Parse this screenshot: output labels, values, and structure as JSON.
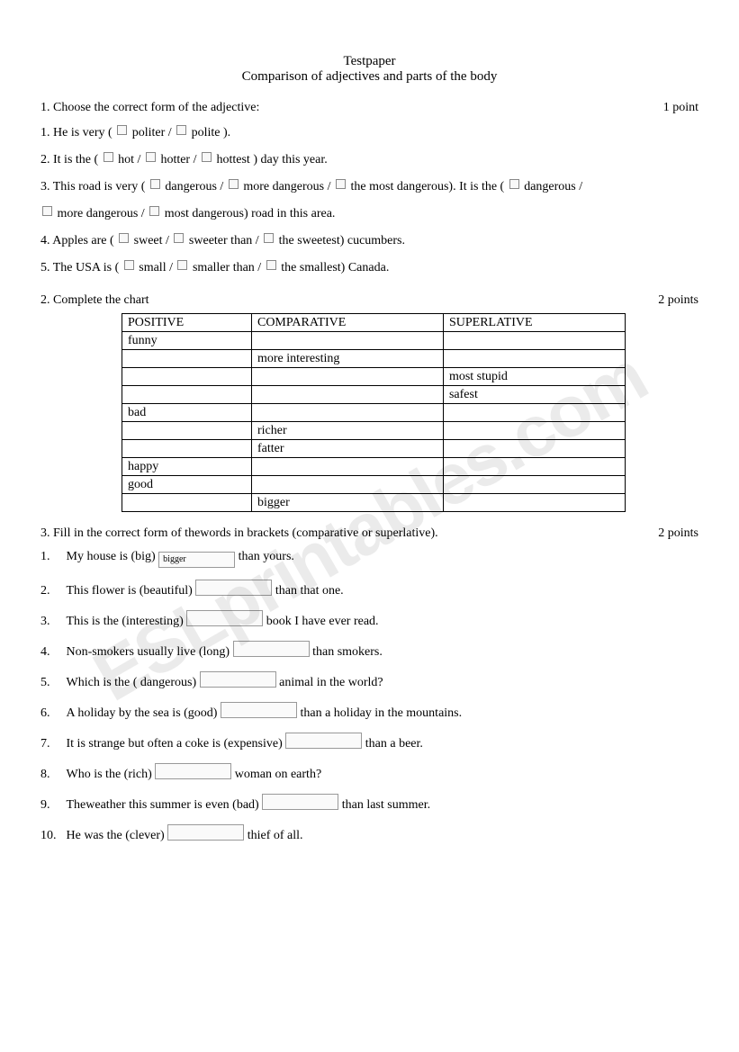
{
  "title": {
    "line1": "Testpaper",
    "line2": "Comparison of adjectives  and parts of the body"
  },
  "watermark": "ESLprintables.com",
  "section1": {
    "header": "1. Choose the correct form of the adjective:",
    "points": "1 point",
    "items": [
      {
        "pre": "1. He is very (",
        "opts": [
          "politer /",
          "polite )."
        ]
      },
      {
        "pre": "2. It is the (",
        "opts": [
          "hot /",
          "hotter /",
          "hottest ) day this year."
        ]
      },
      {
        "pre": "3. This road is very (",
        "opts": [
          "dangerous /",
          "more dangerous /",
          "the most dangerous). It is the ("
        ],
        "opts2_pre": "",
        "opts2": [
          "dangerous /"
        ],
        "cont_pre": "",
        "cont_opts": [
          "more dangerous /",
          "most dangerous) road in this area."
        ]
      },
      {
        "pre": "4. Apples are (",
        "opts": [
          "sweet /",
          "sweeter than /",
          "the sweetest) cucumbers."
        ]
      },
      {
        "pre": "5. The USA is (",
        "opts": [
          "small /",
          "smaller than /",
          "the smallest) Canada."
        ]
      }
    ]
  },
  "section2": {
    "header": "2. Complete the chart",
    "points": "2 points",
    "columns": [
      "POSITIVE",
      "COMPARATIVE",
      "SUPERLATIVE"
    ],
    "rows": [
      [
        "funny",
        "",
        ""
      ],
      [
        "",
        "more interesting",
        ""
      ],
      [
        "",
        "",
        "most stupid"
      ],
      [
        "",
        "",
        "safest"
      ],
      [
        "bad",
        "",
        ""
      ],
      [
        "",
        "richer",
        ""
      ],
      [
        "",
        "fatter",
        ""
      ],
      [
        "happy",
        "",
        ""
      ],
      [
        "good",
        "",
        ""
      ],
      [
        "",
        "bigger",
        ""
      ]
    ]
  },
  "section3": {
    "header": "3. Fill in the correct form of thewords in brackets (comparative or superlative).",
    "points": "2 points",
    "items": [
      {
        "n": "1.",
        "pre": "My house is (big)",
        "val": "bigger",
        "post": "than yours."
      },
      {
        "n": "2.",
        "pre": "This flower is (beautiful)",
        "val": "",
        "post": "than that one."
      },
      {
        "n": "3.",
        "pre": "This is the (interesting)",
        "val": "",
        "post": "book I have ever read."
      },
      {
        "n": "4.",
        "pre": "Non-smokers usually live (long)",
        "val": "",
        "post": "than smokers."
      },
      {
        "n": "5.",
        "pre": "Which is the ( dangerous)",
        "val": "",
        "post": "animal in the world?"
      },
      {
        "n": "6.",
        "pre": "A holiday by the sea is (good)",
        "val": "",
        "post": "than a holiday in the mountains."
      },
      {
        "n": "7.",
        "pre": "It is strange but often a coke is (expensive)",
        "val": "",
        "post": "than a beer."
      },
      {
        "n": "8.",
        "pre": "Who is the (rich)",
        "val": "",
        "post": "woman on earth?"
      },
      {
        "n": "9.",
        "pre": "Theweather this summer is even (bad)",
        "val": "",
        "post": "than last summer."
      },
      {
        "n": "10.",
        "pre": "He was the (clever)",
        "val": "",
        "post": "thief of all."
      }
    ]
  }
}
